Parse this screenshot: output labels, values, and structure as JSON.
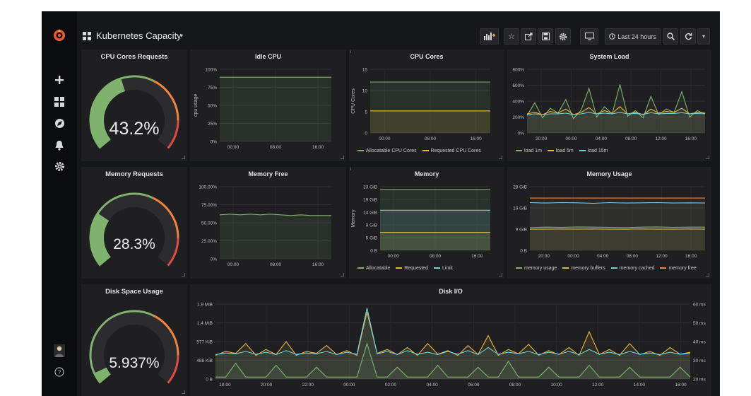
{
  "dashboard": {
    "title": "Kubernetes Capacity"
  },
  "toolbar": {
    "time_range_label": "Last 24 hours"
  },
  "icons": {
    "logo": "grafana-logo-icon",
    "rail": [
      "plus-icon",
      "dashboards-icon",
      "explore-icon",
      "bell-icon",
      "gear-icon"
    ],
    "toolbar": [
      "add-panel-icon",
      "star-icon",
      "share-icon",
      "save-icon",
      "settings-icon",
      "tv-mode-icon",
      "clock-icon",
      "zoom-out-icon",
      "refresh-icon",
      "caret-down-icon"
    ]
  },
  "colors": {
    "green": "#7eb26d",
    "yellow": "#eab839",
    "blue": "#6ed0e0",
    "orange": "#ef843c",
    "red": "#e24d42",
    "panel": "#1f1f21"
  },
  "stats": [
    {
      "title": "CPU Cores Requests",
      "value": "43.2%",
      "fraction": 0.432
    },
    {
      "title": "Memory Requests",
      "value": "28.3%",
      "fraction": 0.283
    },
    {
      "title": "Disk Space Usage",
      "value": "5.937%",
      "fraction": 0.059
    }
  ],
  "charts": {
    "idle_cpu": {
      "title": "Idle CPU",
      "chart_data": {
        "type": "line",
        "ylabel": "cpu usage",
        "yticks": [
          "100%",
          "75%",
          "50%",
          "25%",
          "0%"
        ],
        "xticks": [
          "00:00",
          "08:00",
          "16:00"
        ],
        "ylim": [
          0,
          100
        ],
        "series": [
          {
            "values": [
              89,
              89,
              89,
              89,
              89,
              89,
              89,
              89,
              89,
              89,
              89,
              89
            ]
          }
        ]
      }
    },
    "cpu_cores": {
      "title": "CPU Cores",
      "chart_data": {
        "type": "line",
        "ylabel": "CPU Cores",
        "yticks": [
          "15",
          "10",
          "5",
          "0"
        ],
        "xticks": [
          "00:00",
          "08:00",
          "16:00"
        ],
        "ylim": [
          0,
          15
        ],
        "series": [
          {
            "name": "Allocatable CPU Cores",
            "values": [
              12,
              12,
              12,
              12,
              12,
              12
            ]
          },
          {
            "name": "Requested CPU Cores",
            "values": [
              5.2,
              5.2,
              5.2,
              5.2,
              5.2,
              5.2
            ]
          }
        ]
      }
    },
    "system_load": {
      "title": "System Load",
      "chart_data": {
        "type": "line",
        "yticks": [
          "800%",
          "600%",
          "400%",
          "200%",
          "0%"
        ],
        "xticks": [
          "20:00",
          "00:00",
          "04:00",
          "08:00",
          "12:00",
          "16:00"
        ],
        "ylim": [
          0,
          800
        ],
        "series": [
          {
            "name": "load 1m",
            "values": [
              220,
              380,
              190,
              310,
              250,
              420,
              180,
              290,
              560,
              200,
              330,
              240,
              610,
              210,
              280,
              190,
              460,
              230,
              300,
              260,
              520,
              200,
              280,
              240
            ]
          },
          {
            "name": "load 5m",
            "values": [
              240,
              260,
              230,
              270,
              250,
              300,
              230,
              260,
              320,
              240,
              280,
              250,
              330,
              240,
              260,
              230,
              300,
              250,
              270,
              260,
              310,
              240,
              260,
              250
            ]
          },
          {
            "name": "load 15m",
            "values": [
              230,
              240,
              230,
              240,
              240,
              250,
              230,
              240,
              260,
              240,
              250,
              240,
              260,
              240,
              245,
              235,
              255,
              240,
              245,
              245,
              255,
              240,
              245,
              240
            ]
          }
        ]
      }
    },
    "memory_free": {
      "title": "Memory Free",
      "chart_data": {
        "type": "line",
        "yticks": [
          "100.00%",
          "75.00%",
          "50.00%",
          "25.00%",
          "0%"
        ],
        "xticks": [
          "00:00",
          "08:00",
          "16:00"
        ],
        "ylim": [
          0,
          100
        ],
        "series": [
          {
            "values": [
              61,
              62,
              61,
              62,
              61,
              62,
              61,
              60,
              61,
              60,
              60,
              60
            ]
          }
        ]
      }
    },
    "memory": {
      "title": "Memory",
      "chart_data": {
        "type": "line",
        "ylabel": "Memory",
        "yticks": [
          "23 GiB",
          "19 GiB",
          "14 GiB",
          "9 GiB",
          "5 GiB",
          "0 B"
        ],
        "xticks": [
          "00:00",
          "08:00",
          "16:00"
        ],
        "ylim": [
          0,
          23
        ],
        "series": [
          {
            "name": "Allocatable",
            "values": [
              22,
              22,
              22,
              22,
              22,
              22
            ]
          },
          {
            "name": "Requested",
            "values": [
              6.5,
              6.5,
              6.5,
              6.5,
              6.5,
              6.5
            ]
          },
          {
            "name": "Limit",
            "values": [
              14.5,
              14.5,
              14.5,
              14.5,
              14.5,
              14.5
            ]
          }
        ]
      }
    },
    "memory_usage": {
      "title": "Memory Usage",
      "chart_data": {
        "type": "line",
        "yticks": [
          "28 GiB",
          "19 GiB",
          "9 GiB",
          "0 B"
        ],
        "xticks": [
          "20:00",
          "00:00",
          "04:00",
          "08:00",
          "12:00",
          "16:00"
        ],
        "ylim": [
          0,
          28
        ],
        "series": [
          {
            "name": "memory usage",
            "values": [
              10,
              10.2,
              10.1,
              10.3,
              10.2,
              10.1,
              10,
              10.2,
              10.3,
              10.1,
              10.2,
              10.2
            ]
          },
          {
            "name": "memory buffers",
            "values": [
              9.3,
              9.3,
              9.4,
              9.3,
              9.4,
              9.3,
              9.3,
              9.4,
              9.3,
              9.3,
              9.4,
              9.3
            ]
          },
          {
            "name": "memory cached",
            "values": [
              21,
              20.8,
              21,
              20.9,
              20.7,
              21,
              20.8,
              20.9,
              21,
              20.8,
              20.9,
              20.8
            ]
          },
          {
            "name": "memory free",
            "values": [
              23,
              23,
              23,
              23,
              23,
              23,
              23,
              23,
              23,
              23,
              23,
              23
            ]
          }
        ]
      }
    },
    "disk_io": {
      "title": "Disk I/O",
      "chart_data": {
        "type": "line",
        "yticks": [
          "1.9 MiB",
          "1.4 MiB",
          "977 KiB",
          "488 KiB",
          "0 B"
        ],
        "yticks_right": [
          "60 ms",
          "50 ms",
          "40 ms",
          "30 ms",
          "20 ms"
        ],
        "xticks": [
          "18:00",
          "20:00",
          "22:00",
          "00:00",
          "02:00",
          "04:00",
          "06:00",
          "08:00",
          "10:00",
          "12:00",
          "14:00",
          "16:00"
        ],
        "ylim": [
          0,
          1.9
        ],
        "series": [
          {
            "values": [
              0.6,
              0.7,
              0.65,
              0.9,
              0.6,
              0.75,
              0.62,
              0.95,
              0.6,
              0.7,
              0.65,
              0.85,
              0.62,
              0.72,
              0.6,
              1.7,
              0.65,
              0.75,
              0.62,
              0.8,
              0.6,
              0.9,
              0.63,
              0.72,
              0.6,
              0.85,
              0.62,
              1.1,
              0.6,
              0.75,
              0.64,
              0.88,
              0.6,
              0.72,
              0.62,
              0.8,
              0.6,
              1.2,
              0.62,
              0.75,
              0.6,
              0.9,
              0.62,
              0.7,
              0.6,
              0.8,
              0.63,
              0.68
            ]
          },
          {
            "values": [
              0.62,
              0.66,
              0.64,
              0.7,
              0.63,
              0.68,
              0.62,
              0.72,
              0.63,
              0.66,
              0.64,
              0.7,
              0.62,
              0.68,
              0.63,
              1.8,
              0.64,
              0.7,
              0.62,
              0.72,
              0.63,
              0.68,
              0.62,
              0.7,
              0.63,
              0.72,
              0.62,
              0.8,
              0.63,
              0.68,
              0.64,
              0.7,
              0.62,
              0.68,
              0.63,
              0.7,
              0.62,
              0.75,
              0.63,
              0.68,
              0.62,
              0.7,
              0.63,
              0.66,
              0.62,
              0.68,
              0.63,
              0.65
            ]
          },
          {
            "values": [
              0.05,
              0.05,
              0.4,
              0.05,
              0.05,
              0.05,
              0.35,
              0.05,
              0.05,
              0.05,
              0.3,
              0.05,
              0.05,
              0.05,
              0.05,
              0.9,
              0.05,
              0.05,
              0.3,
              0.05,
              0.05,
              0.05,
              0.35,
              0.05,
              0.05,
              0.05,
              0.3,
              0.05,
              0.05,
              0.45,
              0.05,
              0.05,
              0.05,
              0.3,
              0.05,
              0.05,
              0.05,
              0.35,
              0.05,
              0.05,
              0.05,
              0.3,
              0.05,
              0.05,
              0.05,
              0.05,
              0.3,
              0.05
            ]
          }
        ]
      }
    }
  }
}
